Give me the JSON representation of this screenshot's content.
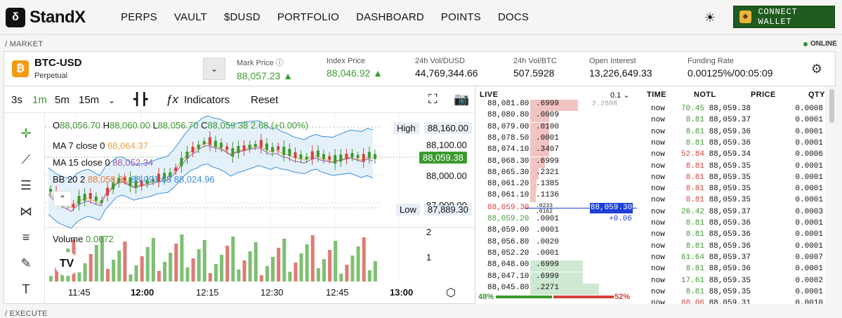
{
  "nav": {
    "logo": "StandX",
    "links": [
      "PERPS",
      "VAULT",
      "$DUSD",
      "PORTFOLIO",
      "DASHBOARD",
      "POINTS",
      "DOCS"
    ],
    "connect": "CONNECT WALLET",
    "theme_icon": "sun-icon"
  },
  "market_label": "/ MARKET",
  "status": "ONLINE",
  "execute_label": "/ EXECUTE",
  "ticker": {
    "symbol": "BTC-USD",
    "type": "Perpetual",
    "stats": [
      {
        "label": "Mark Price ⓘ",
        "value": "88,057.23",
        "arrow": "▲",
        "color": "green"
      },
      {
        "label": "Index Price",
        "value": "88,046.92",
        "arrow": "▲",
        "color": "green"
      },
      {
        "label": "24h Vol/DUSD",
        "value": "44,769,344.66"
      },
      {
        "label": "24h Vol/BTC",
        "value": "507.5928"
      },
      {
        "label": "Open Interest",
        "value": "13,226,649.33"
      },
      {
        "label": "Funding Rate",
        "value": "0.00125%/00:05:09"
      }
    ]
  },
  "chart_toolbar": {
    "intervals": [
      "3s",
      "1m",
      "5m",
      "15m"
    ],
    "active": "1m",
    "indicators": "Indicators",
    "reset": "Reset"
  },
  "chart": {
    "ohlc": {
      "o_label": "O",
      "o": "88,056.70",
      "h_label": "H",
      "h": "88,060.00",
      "l_label": "L",
      "l": "88,056.70",
      "c_label": "C",
      "c": "88,059.38",
      "chg": "2.68 (+0.00%)"
    },
    "ma7": {
      "label": "MA 7 close 0",
      "value": "88,064.37"
    },
    "ma15": {
      "label": "MA 15 close 0",
      "value": "88,052.34"
    },
    "bb": {
      "label": "BB 20 2",
      "v1": "88,058.31",
      "v2": "88,091.65",
      "v3": "88,024.96"
    },
    "volume": {
      "label": "Volume",
      "value": "0.0672"
    },
    "high": {
      "label": "High",
      "value": "88,160.00"
    },
    "low": {
      "label": "Low",
      "value": "87,889.30"
    },
    "current": "88,059.38",
    "y_ticks": [
      "88,100.00",
      "88,000.00",
      "87,900.00"
    ],
    "vol_ticks": [
      "2",
      "1"
    ],
    "x_ticks": [
      "11:45",
      "12:00",
      "12:15",
      "12:30",
      "12:45",
      "13:00"
    ]
  },
  "book": {
    "title": "LIVE",
    "tick": "0.1",
    "asks": [
      {
        "p": "88,081.80",
        "q": ".6999",
        "d": 0.45
      },
      {
        "p": "88,080.80",
        "q": ".0009",
        "d": 0.18
      },
      {
        "p": "88,079.00",
        "q": ".0100",
        "d": 0.18
      },
      {
        "p": "88,078.50",
        "q": ".0001",
        "d": 0.18
      },
      {
        "p": "88,074.10",
        "q": ".3407",
        "d": 0.18
      },
      {
        "p": "88,068.30",
        "q": ".6999",
        "d": 0.14
      },
      {
        "p": "88,065.30",
        "q": ".2321",
        "d": 0.08
      },
      {
        "p": "88,061.20",
        "q": ".1385",
        "d": 0.06
      },
      {
        "p": "88,061.10",
        "q": ".1136",
        "d": 0.05
      }
    ],
    "asks_note": "2.2598",
    "mid": {
      "p": "88,059.30",
      "q1": ".0233",
      "q2": ".0162",
      "price": "88,059.30",
      "change": "+0.06"
    },
    "bids": [
      {
        "p": "88,059.20",
        "q": ".0001",
        "d": 0
      },
      {
        "p": "88,059.00",
        "q": ".0001",
        "d": 0
      },
      {
        "p": "88,056.80",
        "q": ".0020",
        "d": 0
      },
      {
        "p": "88,052.20",
        "q": ".0001",
        "d": 0
      },
      {
        "p": "88,048.00",
        "q": ".6999",
        "d": 0.5
      },
      {
        "p": "88,047.10",
        "q": ".6999",
        "d": 0.5
      },
      {
        "p": "88,045.80",
        "q": ".2271",
        "d": 0.65
      }
    ],
    "bid_pct": "48%",
    "ask_pct": "52%"
  },
  "trades": {
    "headers": [
      "TIME",
      "NOTL",
      "PRICE",
      "QTY"
    ],
    "rows": [
      {
        "t": "now",
        "n": "70.45",
        "p": "88,059.38",
        "q": "0.0008",
        "s": "buy"
      },
      {
        "t": "now",
        "n": "8.81",
        "p": "88,059.37",
        "q": "0.0001",
        "s": "buy"
      },
      {
        "t": "now",
        "n": "8.81",
        "p": "88,059.36",
        "q": "0.0001",
        "s": "buy"
      },
      {
        "t": "now",
        "n": "8.81",
        "p": "88,059.36",
        "q": "0.0001",
        "s": "buy"
      },
      {
        "t": "now",
        "n": "52.84",
        "p": "88,059.34",
        "q": "0.0006",
        "s": "sell"
      },
      {
        "t": "now",
        "n": "8.81",
        "p": "88,059.35",
        "q": "0.0001",
        "s": "sell"
      },
      {
        "t": "now",
        "n": "8.81",
        "p": "88,059.35",
        "q": "0.0001",
        "s": "sell"
      },
      {
        "t": "now",
        "n": "8.81",
        "p": "88,059.35",
        "q": "0.0001",
        "s": "sell"
      },
      {
        "t": "now",
        "n": "8.81",
        "p": "88,059.35",
        "q": "0.0001",
        "s": "sell"
      },
      {
        "t": "now",
        "n": "26.42",
        "p": "88,059.37",
        "q": "0.0003",
        "s": "buy"
      },
      {
        "t": "now",
        "n": "8.81",
        "p": "88,059.36",
        "q": "0.0001",
        "s": "buy"
      },
      {
        "t": "now",
        "n": "8.81",
        "p": "88,059.36",
        "q": "0.0001",
        "s": "buy"
      },
      {
        "t": "now",
        "n": "8.81",
        "p": "88,059.36",
        "q": "0.0001",
        "s": "buy"
      },
      {
        "t": "now",
        "n": "61.64",
        "p": "88,059.37",
        "q": "0.0007",
        "s": "buy"
      },
      {
        "t": "now",
        "n": "8.81",
        "p": "88,059.36",
        "q": "0.0001",
        "s": "buy"
      },
      {
        "t": "now",
        "n": "17.61",
        "p": "88,059.35",
        "q": "0.0002",
        "s": "buy"
      },
      {
        "t": "now",
        "n": "8.81",
        "p": "88,059.35",
        "q": "0.0001",
        "s": "buy"
      },
      {
        "t": "now",
        "n": "88.06",
        "p": "88,059.31",
        "q": "0.0010",
        "s": "sell"
      }
    ]
  },
  "colors": {
    "green": "#3a9a2e",
    "red": "#d9403a",
    "blue": "#1d3fd6",
    "accent": "#1f5a1f"
  }
}
